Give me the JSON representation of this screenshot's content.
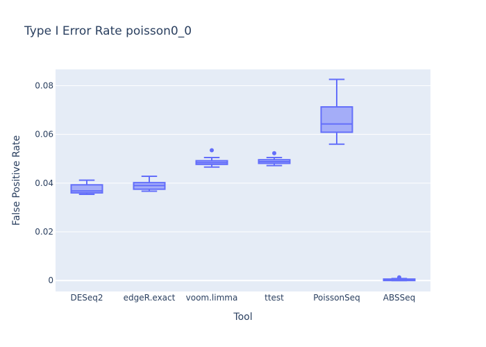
{
  "chart_data": {
    "type": "box",
    "title": "Type I Error Rate poisson0_0",
    "xlabel": "Tool",
    "ylabel": "False Positive Rate",
    "categories": [
      "DESeq2",
      "edgeR.exact",
      "voom.limma",
      "ttest",
      "PoissonSeq",
      "ABSSeq"
    ],
    "y_ticks": [
      0,
      0.02,
      0.04,
      0.06,
      0.08
    ],
    "y_tick_labels": [
      "0",
      "0.02",
      "0.04",
      "0.06",
      "0.08"
    ],
    "ylim": [
      -0.0045,
      0.0867
    ],
    "grid": true,
    "series": [
      {
        "boxes": [
          {
            "category": "DESeq2",
            "min": 0.0354,
            "q1": 0.036,
            "median": 0.0368,
            "q3": 0.0393,
            "max": 0.0412,
            "outliers": []
          },
          {
            "category": "edgeR.exact",
            "min": 0.0367,
            "q1": 0.0375,
            "median": 0.039,
            "q3": 0.0402,
            "max": 0.0428,
            "outliers": []
          },
          {
            "category": "voom.limma",
            "min": 0.0466,
            "q1": 0.0477,
            "median": 0.0484,
            "q3": 0.0492,
            "max": 0.0505,
            "outliers": [
              0.0535
            ]
          },
          {
            "category": "ttest",
            "min": 0.0472,
            "q1": 0.0481,
            "median": 0.0488,
            "q3": 0.0496,
            "max": 0.0505,
            "outliers": [
              0.0523
            ]
          },
          {
            "category": "PoissonSeq",
            "min": 0.056,
            "q1": 0.0609,
            "median": 0.0643,
            "q3": 0.0713,
            "max": 0.0826,
            "outliers": []
          },
          {
            "category": "ABSSeq",
            "min": 0.0,
            "q1": 0.0,
            "median": 0.0001,
            "q3": 0.0006,
            "max": 0.0008,
            "outliers": [
              0.0013
            ]
          }
        ]
      }
    ],
    "colors": {
      "box_stroke": "#636efa",
      "box_fill": "rgba(99,110,250,0.5)",
      "plot_bg": "#e5ecf6",
      "grid": "#ffffff",
      "text": "#2a3f5f"
    }
  }
}
